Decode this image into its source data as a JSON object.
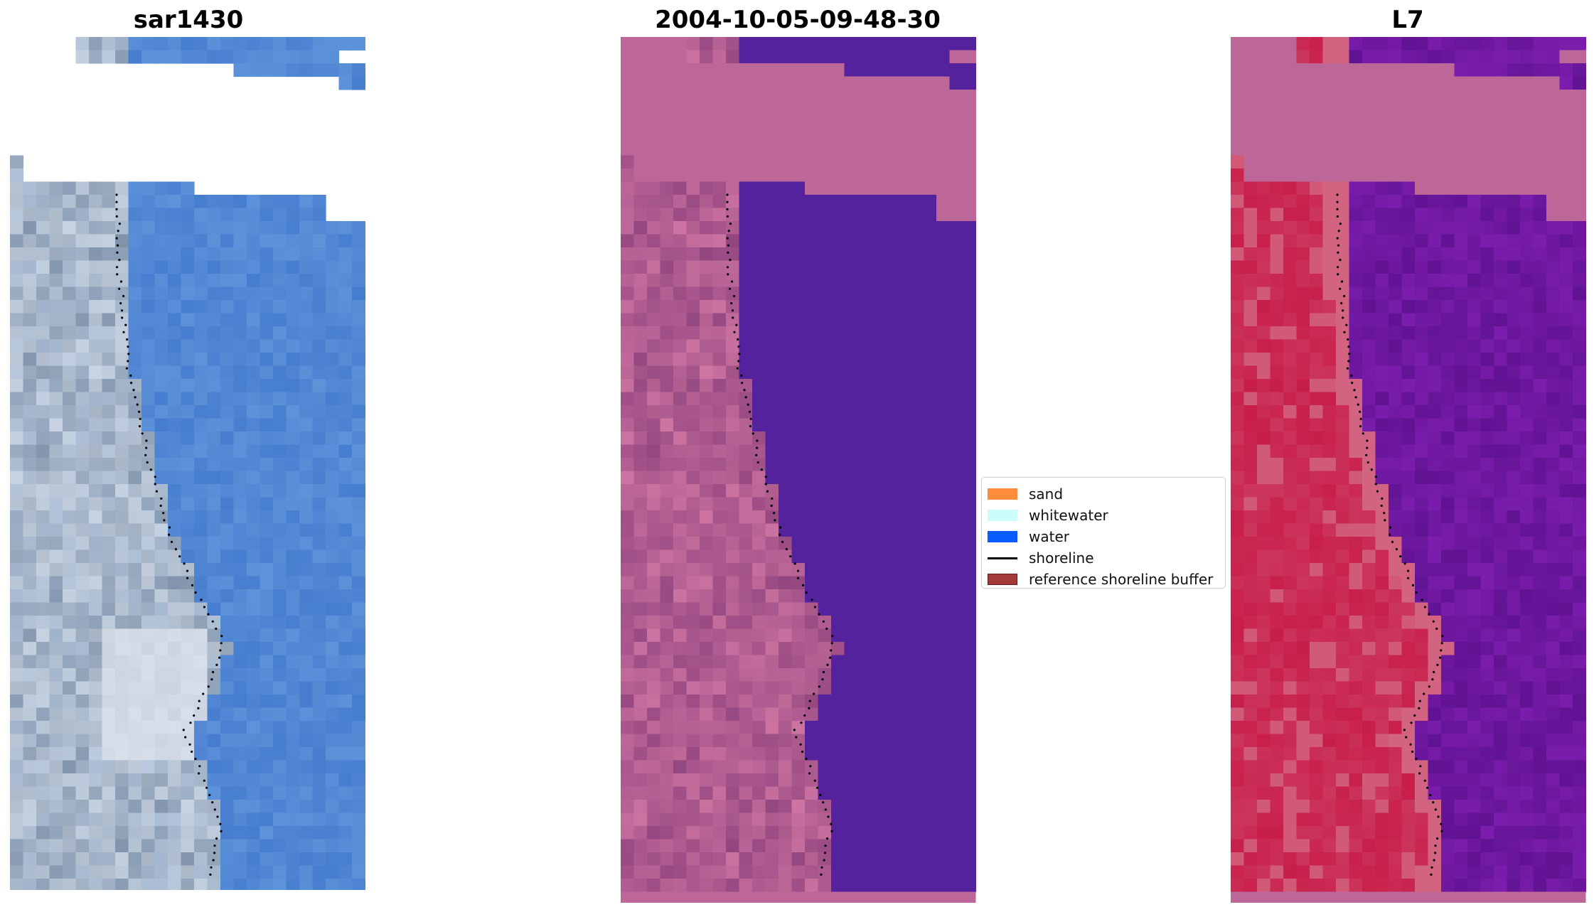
{
  "panels": [
    {
      "title": "sar1430",
      "kind": "rgb"
    },
    {
      "title": "2004-10-05-09-48-30",
      "kind": "classified"
    },
    {
      "title": "L7",
      "kind": "index"
    }
  ],
  "legend": {
    "items": [
      {
        "label": "sand",
        "type": "patch",
        "color": "#ff8c3c",
        "edge": "#ff8c3c"
      },
      {
        "label": "whitewater",
        "type": "patch",
        "color": "#cbfdfb",
        "edge": "#cbfdfb"
      },
      {
        "label": "water",
        "type": "patch",
        "color": "#0a5cff",
        "edge": "#0a5cff"
      },
      {
        "label": "shoreline",
        "type": "line",
        "color": "#000000"
      },
      {
        "label": "reference shoreline buffer",
        "type": "patch",
        "color": "#a33a3a",
        "edge": "#6b1d1d"
      }
    ]
  },
  "colors": {
    "background": "#ffffff",
    "rgb_water": "#5288d4",
    "rgb_land": "#a9bcd4",
    "classified_land": "#bd6798",
    "classified_water": "#53229c",
    "index_land": "#c81e4a",
    "index_water": "#6e18a0",
    "index_nodata": "#bd6798",
    "shoreline_dots": "#000000"
  }
}
